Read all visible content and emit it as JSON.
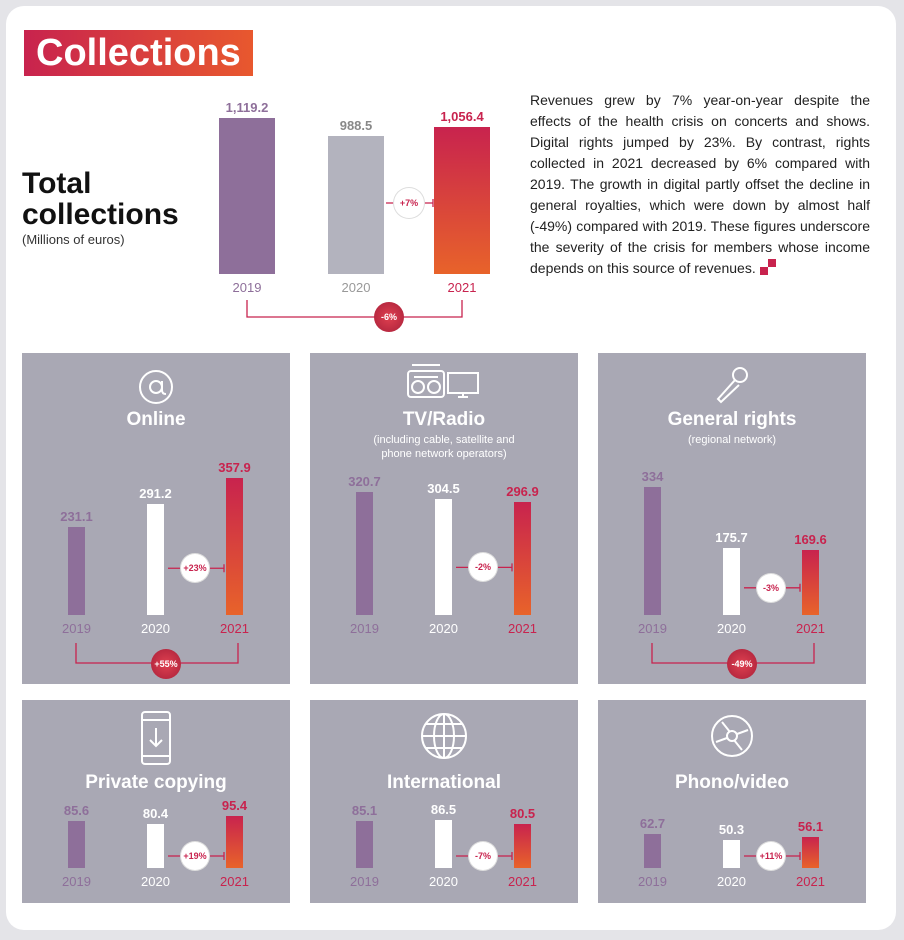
{
  "section_title": "Collections",
  "total": {
    "title_line1": "Total",
    "title_line2": "collections",
    "subtitle": "(Millions of euros)",
    "paragraph": "Revenues grew by 7% year-on-year despite the effects of the health crisis on concerts and shows. Digital rights jumped by 23%. By contrast, rights collected in 2021 decreased by 6% compared with 2019. The growth in digital partly offset the decline in general royalties, which were down by almost half (-49%) compared with 2019. These figures underscore the severity of the crisis for members whose income depends on this source of revenues."
  },
  "colors": {
    "y2019": "#8e6f9a",
    "y2020_main": "#b3b3be",
    "y2020_panel": "#ffffff",
    "y2021_top": "#c8234e",
    "y2021_bottom": "#e8632a",
    "panel_bg": "#a9a8b4",
    "accent": "#c8234e"
  },
  "chart_data": [
    {
      "type": "bar",
      "categories": [
        "2019",
        "2020",
        "2021"
      ],
      "values": [
        1119.2,
        988.5,
        1056.4
      ],
      "value_labels": [
        "1,119.2",
        "988.5",
        "1,056.4"
      ],
      "change_2020_2021": "+7%",
      "change_2019_2021": "-6%"
    },
    {
      "type": "bar",
      "title": "Online",
      "subtitle": "",
      "icon": "at-icon",
      "categories": [
        "2019",
        "2020",
        "2021"
      ],
      "values": [
        231.1,
        291.2,
        357.9
      ],
      "value_labels": [
        "231.1",
        "291.2",
        "357.9"
      ],
      "change_2020_2021": "+23%",
      "change_2019_2021": "+55%"
    },
    {
      "type": "bar",
      "title": "TV/Radio",
      "subtitle": "(including cable, satellite and phone network operators)",
      "icon": "radio-tv-icon",
      "categories": [
        "2019",
        "2020",
        "2021"
      ],
      "values": [
        320.7,
        304.5,
        296.9
      ],
      "value_labels": [
        "320.7",
        "304.5",
        "296.9"
      ],
      "change_2020_2021": "-2%",
      "change_2019_2021": ""
    },
    {
      "type": "bar",
      "title": "General rights",
      "subtitle": "(regional network)",
      "icon": "microphone-icon",
      "categories": [
        "2019",
        "2020",
        "2021"
      ],
      "values": [
        334,
        175.7,
        169.6
      ],
      "value_labels": [
        "334",
        "175.7",
        "169.6"
      ],
      "change_2020_2021": "-3%",
      "change_2019_2021": "-49%"
    },
    {
      "type": "bar",
      "title": "Private copying",
      "subtitle": "",
      "icon": "phone-download-icon",
      "categories": [
        "2019",
        "2020",
        "2021"
      ],
      "values": [
        85.6,
        80.4,
        95.4
      ],
      "value_labels": [
        "85.6",
        "80.4",
        "95.4"
      ],
      "change_2020_2021": "+19%",
      "change_2019_2021": ""
    },
    {
      "type": "bar",
      "title": "International",
      "subtitle": "",
      "icon": "globe-icon",
      "categories": [
        "2019",
        "2020",
        "2021"
      ],
      "values": [
        85.1,
        86.5,
        80.5
      ],
      "value_labels": [
        "85.1",
        "86.5",
        "80.5"
      ],
      "change_2020_2021": "-7%",
      "change_2019_2021": ""
    },
    {
      "type": "bar",
      "title": "Phono/video",
      "subtitle": "",
      "icon": "disc-icon",
      "categories": [
        "2019",
        "2020",
        "2021"
      ],
      "values": [
        62.7,
        50.3,
        56.1
      ],
      "value_labels": [
        "62.7",
        "50.3",
        "56.1"
      ],
      "change_2020_2021": "+11%",
      "change_2019_2021": ""
    }
  ]
}
